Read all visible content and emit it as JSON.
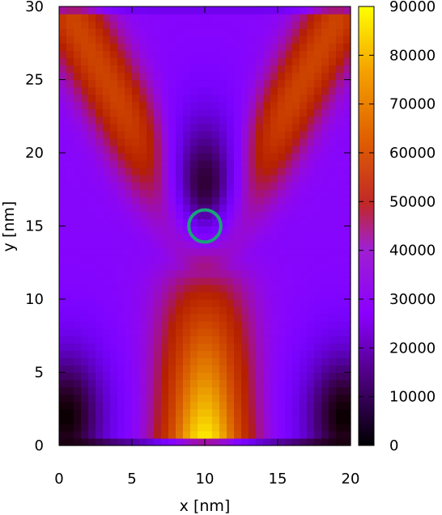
{
  "chart_data": {
    "type": "heatmap",
    "xlabel": "x [nm]",
    "ylabel": "y [nm]",
    "xlim": [
      0,
      20
    ],
    "ylim": [
      0,
      30
    ],
    "x_ticks": [
      0,
      5,
      10,
      15,
      20
    ],
    "y_ticks": [
      0,
      5,
      10,
      15,
      20,
      25,
      30
    ],
    "colorbar": {
      "range": [
        0,
        90000
      ],
      "ticks": [
        0,
        10000,
        20000,
        30000,
        40000,
        50000,
        60000,
        70000,
        80000,
        90000
      ],
      "palette": "gnuplot (black-purple-red-orange-yellow)"
    },
    "grid": false,
    "field_summary": {
      "description": "Y-shaped high-intensity region; a vertical stem centred at x=10 from y=0 to ~13 peaks near 88000 at the bottom, then two arms branch upward to the top corners (~60000); dark minimum (~3000) above the junction around (10,18) and in the lower-left / lower-right corners.",
      "stem": {
        "x_center": 10,
        "y_range": [
          0.5,
          13
        ],
        "peak_value": 88000,
        "value_at_top": 45000
      },
      "arms": [
        {
          "from": [
            10,
            13
          ],
          "to": [
            1,
            29
          ],
          "value": 58000
        },
        {
          "from": [
            10,
            13
          ],
          "to": [
            19,
            29
          ],
          "value": 58000
        }
      ],
      "minima": [
        {
          "at": [
            10,
            18
          ],
          "value": 3000
        },
        {
          "at": [
            0.5,
            2
          ],
          "value": 0
        },
        {
          "at": [
            19.5,
            2
          ],
          "value": 0
        }
      ],
      "background_value": 25000
    },
    "annotation": {
      "shape": "circle",
      "center": [
        10,
        15
      ],
      "radius_nm": 1.1,
      "color": "#1aa37a"
    }
  }
}
